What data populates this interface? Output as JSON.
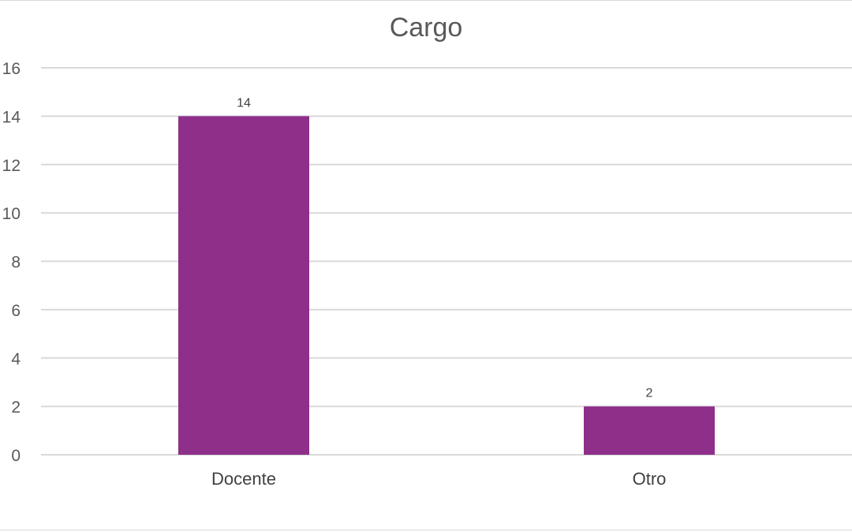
{
  "chart_data": {
    "type": "bar",
    "title": "Cargo",
    "categories": [
      "Docente",
      "Otro"
    ],
    "values": [
      14,
      2
    ],
    "data_labels": [
      "14",
      "2"
    ],
    "ylim": [
      0,
      16
    ],
    "yticks": [
      0,
      2,
      4,
      6,
      8,
      10,
      12,
      14,
      16
    ],
    "grid": true,
    "legend": "none",
    "bar_color": "#8e2f8a",
    "grid_color": "#d9d9d9"
  }
}
